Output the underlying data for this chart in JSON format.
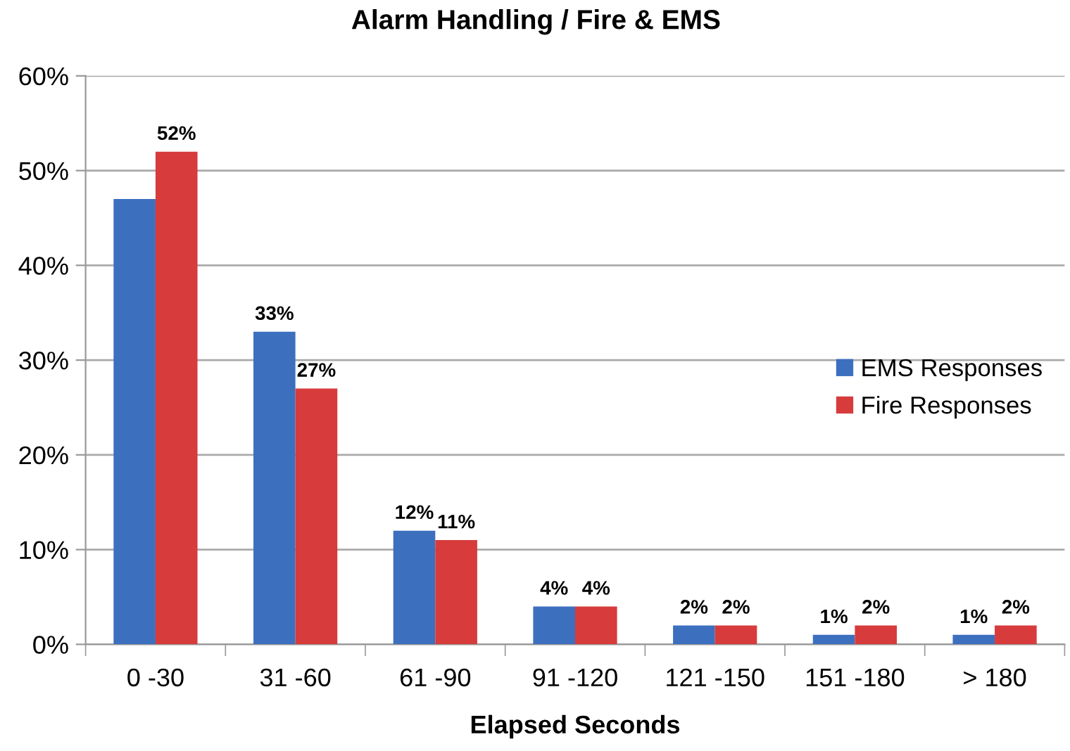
{
  "chart_data": {
    "type": "bar",
    "title": "Alarm Handling / Fire & EMS",
    "xlabel": "Elapsed Seconds",
    "categories": [
      "0 -30",
      "31 -60",
      "61 -90",
      "91 -120",
      "121 -150",
      "151 -180",
      "> 180"
    ],
    "series": [
      {
        "name": "EMS Responses",
        "color": "#3d6fbf",
        "values": [
          47,
          33,
          12,
          4,
          2,
          1,
          1
        ],
        "value_labels": [
          null,
          "33%",
          "12%",
          "4%",
          "2%",
          "1%",
          "1%"
        ]
      },
      {
        "name": "Fire Responses",
        "color": "#d73b3b",
        "values": [
          52,
          27,
          11,
          4,
          2,
          2,
          2
        ],
        "value_labels": [
          "52%",
          "27%",
          "11%",
          "4%",
          "2%",
          "2%",
          "2%"
        ]
      }
    ],
    "ylim": [
      0,
      60
    ],
    "yticks": [
      {
        "value": 0,
        "label": "0%"
      },
      {
        "value": 10,
        "label": "10%"
      },
      {
        "value": 20,
        "label": "20%"
      },
      {
        "value": 30,
        "label": "30%"
      },
      {
        "value": 40,
        "label": "40%"
      },
      {
        "value": 50,
        "label": "50%"
      },
      {
        "value": 60,
        "label": "60%"
      }
    ],
    "grid": "y",
    "legend": "right"
  }
}
